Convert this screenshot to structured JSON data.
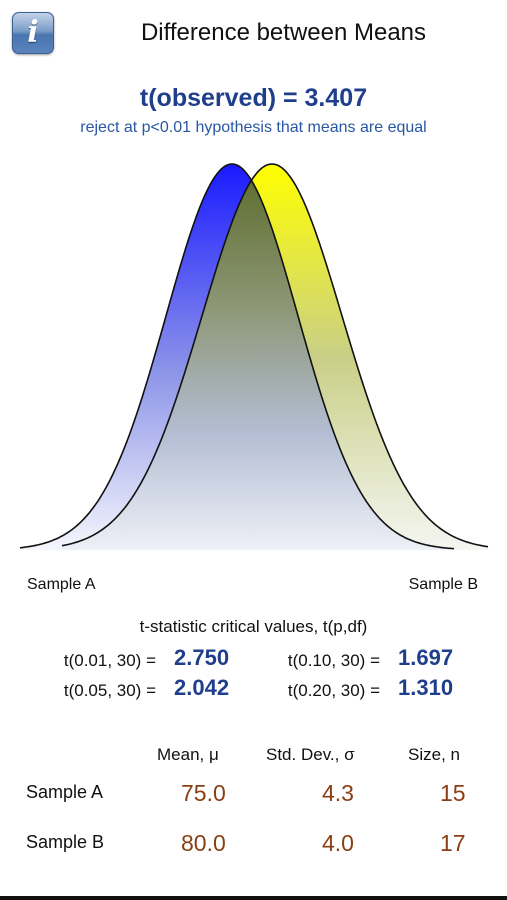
{
  "header": {
    "info_icon": "info-icon",
    "title": "Difference between Means"
  },
  "result": {
    "t_observed": "t(observed) = 3.407",
    "verdict": "reject at p<0.01 hypothesis that means are equal"
  },
  "chart_labels": {
    "sample_a": "Sample A",
    "sample_b": "Sample B"
  },
  "critical": {
    "heading": "t-statistic critical values, t(p,df)",
    "items": [
      {
        "label": "t(0.01, 30) =",
        "value": "2.750"
      },
      {
        "label": "t(0.10, 30) =",
        "value": "1.697"
      },
      {
        "label": "t(0.05, 30) =",
        "value": "2.042"
      },
      {
        "label": "t(0.20, 30) =",
        "value": "1.310"
      }
    ]
  },
  "table": {
    "columns": [
      "Mean, μ",
      "Std. Dev., σ",
      "Size, n"
    ],
    "rows": [
      {
        "name": "Sample A",
        "mean": "75.0",
        "sd": "4.3",
        "n": "15"
      },
      {
        "name": "Sample B",
        "mean": "80.0",
        "sd": "4.0",
        "n": "17"
      }
    ]
  },
  "colors": {
    "sample_a": "#1a1aff",
    "sample_b": "#ffff00",
    "value_blue": "#1f3f8c",
    "stat_brown": "#8a3e14"
  }
}
